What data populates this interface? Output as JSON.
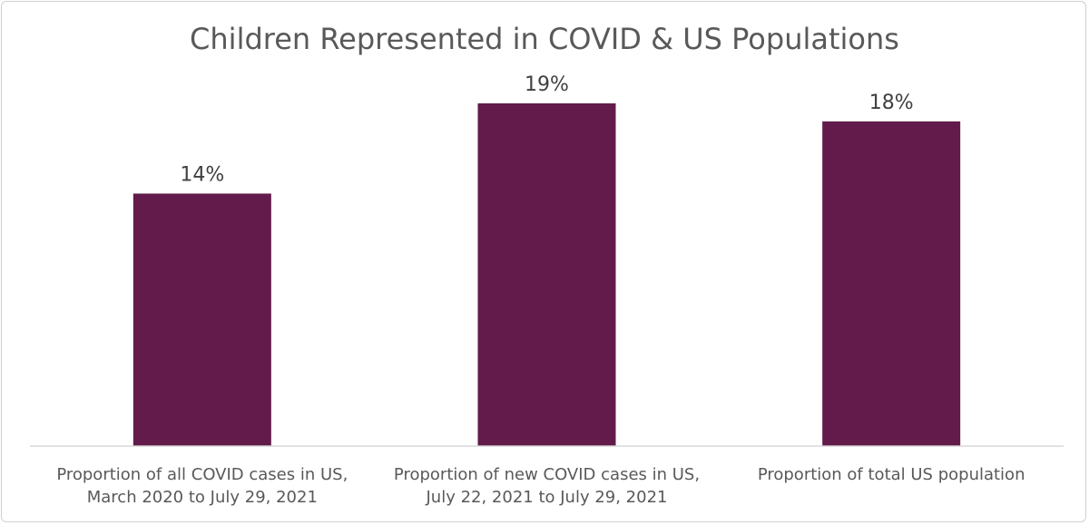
{
  "chart_data": {
    "type": "bar",
    "title": "Children Represented in COVID & US Populations",
    "xlabel": "",
    "ylabel": "",
    "categories": [
      [
        "Proportion of all COVID cases in US,",
        "March 2020 to July 29, 2021"
      ],
      [
        "Proportion of new COVID cases in US,",
        "July 22, 2021 to July 29, 2021"
      ],
      [
        "Proportion of total US population"
      ]
    ],
    "values": [
      14,
      19,
      18
    ],
    "value_labels": [
      "14%",
      "19%",
      "18%"
    ],
    "ylim": [
      0,
      20
    ],
    "grid": false,
    "legend": "none",
    "bar_color": "#621B4A",
    "axis_color": "#d9d9d9"
  }
}
